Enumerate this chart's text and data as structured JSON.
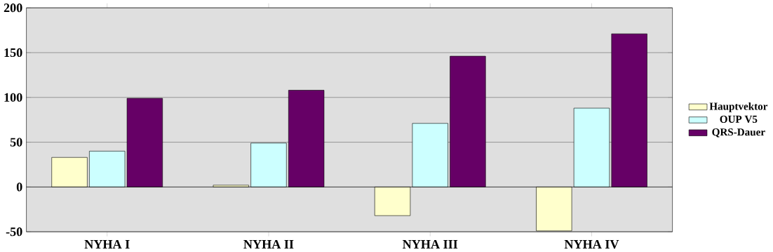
{
  "chart_data": {
    "type": "bar",
    "categories": [
      "NYHA I",
      "NYHA II",
      "NYHA III",
      "NYHA IV"
    ],
    "series": [
      {
        "name": "Hauptvektor",
        "color": "#ffffcc",
        "values": [
          33,
          2,
          -32,
          -49
        ]
      },
      {
        "name": "OUP V5",
        "color": "#ccffff",
        "values": [
          40,
          49,
          71,
          88
        ]
      },
      {
        "name": "QRS-Dauer",
        "color": "#660066",
        "values": [
          99,
          108,
          146,
          171
        ]
      }
    ],
    "ylim": [
      -50,
      200
    ],
    "yticks": [
      -50,
      0,
      50,
      100,
      150,
      200
    ],
    "grid": "y",
    "legend": "right"
  }
}
